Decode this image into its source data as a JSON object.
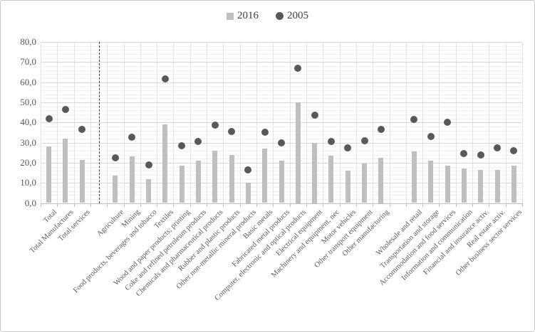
{
  "chart_data": {
    "type": "combo-bar-scatter",
    "title": "",
    "legend_position": "top-center",
    "grid": true,
    "ylim": [
      0,
      80
    ],
    "y_major_step": 10,
    "y_minor_step": 2,
    "y_tick_labels": [
      "80,0",
      "70,0",
      "60,0",
      "50,0",
      "40,0",
      "30,0",
      "20,0",
      "10,0",
      "0,0"
    ],
    "categories": [
      "Total",
      "Total Manufactures",
      "Total services",
      "Agriculture",
      "Mining",
      "Food products, beverages and tobacco",
      "Textiles",
      "Wood and paper products; printing",
      "Coke and refined petroleum products",
      "Chemicals and pharmaceutical products",
      "Rubber and plastic products",
      "Other non-metallic mineral products",
      "Basic metals",
      "Fabricated metal products",
      "Computer, electronic and optical products",
      "Electrical equipment",
      "Machinery and equipment, nec",
      "Motor vehicles",
      "Other transport equipment",
      "Other manufacturing",
      "Wholesale and retail",
      "Transportation and storage",
      "Accommodation and food services",
      "Information and communication",
      "Financial and insurance activ.",
      "Real estate activ.",
      "Other business sector services"
    ],
    "series": [
      {
        "name": "2016",
        "type": "bar",
        "marker": "square",
        "color": "#bfbfbf",
        "values": [
          28,
          32,
          21.5,
          13.5,
          23,
          12,
          39,
          18.5,
          21,
          26,
          24,
          10,
          27,
          21,
          50,
          30,
          23.5,
          16,
          19.5,
          22.5,
          25.5,
          21,
          18.5,
          17,
          16.5,
          16.5,
          18.5
        ]
      },
      {
        "name": "2005",
        "type": "scatter",
        "marker": "circle",
        "color": "#595959",
        "values": [
          42,
          46.5,
          36.5,
          22.5,
          32.5,
          19,
          61.5,
          28.5,
          30.5,
          38.5,
          35.5,
          16.5,
          35,
          30,
          67,
          43.5,
          30.5,
          27.5,
          31,
          36.5,
          41.5,
          33,
          40,
          24.5,
          24,
          27.5,
          26
        ]
      }
    ],
    "group_gaps_after": [
      2,
      19
    ],
    "dashed_separator_after_index": 2,
    "colors": {
      "major_gridline": "#d8d8d8",
      "minor_gridline": "#f1f1f1",
      "vertical_gridline": "#e4e4e4",
      "axis": "#bfbfbf",
      "tick_label": "#595959",
      "legend_text": "#404040",
      "separator": "#3b3b3b"
    }
  }
}
